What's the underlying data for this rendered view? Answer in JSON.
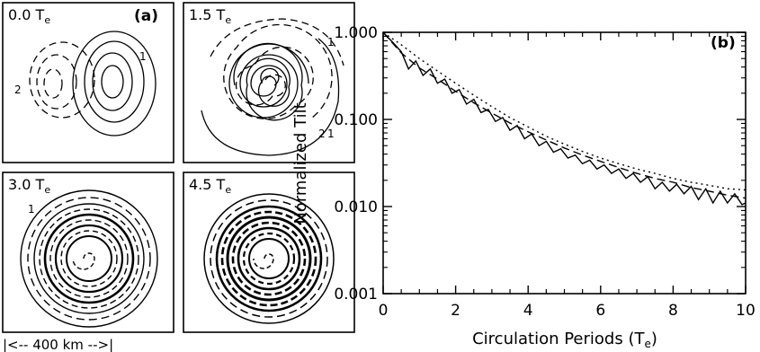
{
  "panel_a": {
    "label": "(a)",
    "panels": [
      {
        "time": "0.0",
        "unit": "T",
        "sub": "e",
        "contour_labels": [
          "2",
          "1"
        ]
      },
      {
        "time": "1.5",
        "unit": "T",
        "sub": "e",
        "contour_labels": [
          "1",
          "2",
          "1"
        ]
      },
      {
        "time": "3.0",
        "unit": "T",
        "sub": "e",
        "contour_labels": [
          "1"
        ]
      },
      {
        "time": "4.5",
        "unit": "T",
        "sub": "e",
        "contour_labels": []
      }
    ],
    "scale_bar": "|<-- 400 km -->|"
  },
  "chart_data": {
    "type": "line",
    "panel_label": "(b)",
    "xlabel": "Circulation Periods (T",
    "xlabel_sub": "e",
    "xlabel_end": ")",
    "ylabel": "Normalized Tilt",
    "xlim": [
      0,
      10
    ],
    "ylim": [
      0.001,
      1.0
    ],
    "y_scale": "log",
    "x_ticks": [
      "0",
      "2",
      "4",
      "6",
      "8",
      "10"
    ],
    "y_ticks": [
      "0.001",
      "0.010",
      "0.100",
      "1.000"
    ],
    "series": [
      {
        "style": "solid",
        "x": [
          0.0,
          0.25,
          0.5,
          0.7,
          0.9,
          1.1,
          1.3,
          1.5,
          1.7,
          1.9,
          2.1,
          2.3,
          2.5,
          2.7,
          2.9,
          3.1,
          3.3,
          3.5,
          3.7,
          3.9,
          4.1,
          4.3,
          4.5,
          4.7,
          4.9,
          5.1,
          5.3,
          5.5,
          5.7,
          5.9,
          6.1,
          6.3,
          6.5,
          6.7,
          6.9,
          7.1,
          7.3,
          7.5,
          7.7,
          7.9,
          8.1,
          8.3,
          8.5,
          8.7,
          8.9,
          9.1,
          9.3,
          9.5,
          9.7,
          9.9,
          10.0
        ],
        "y": [
          1.0,
          0.78,
          0.6,
          0.38,
          0.47,
          0.32,
          0.38,
          0.26,
          0.29,
          0.2,
          0.22,
          0.15,
          0.17,
          0.12,
          0.13,
          0.095,
          0.105,
          0.075,
          0.085,
          0.06,
          0.068,
          0.05,
          0.056,
          0.042,
          0.046,
          0.036,
          0.039,
          0.031,
          0.034,
          0.027,
          0.03,
          0.024,
          0.027,
          0.021,
          0.024,
          0.019,
          0.022,
          0.016,
          0.019,
          0.015,
          0.018,
          0.014,
          0.017,
          0.012,
          0.016,
          0.011,
          0.015,
          0.011,
          0.014,
          0.0105,
          0.011
        ]
      },
      {
        "style": "dashed",
        "x": [
          0.0,
          0.5,
          1.0,
          1.5,
          2.0,
          2.5,
          3.0,
          3.5,
          4.0,
          4.5,
          5.0,
          5.5,
          6.0,
          6.5,
          7.0,
          7.5,
          8.0,
          8.5,
          9.0,
          9.5,
          10.0
        ],
        "y": [
          1.0,
          0.58,
          0.39,
          0.29,
          0.21,
          0.155,
          0.118,
          0.091,
          0.072,
          0.058,
          0.047,
          0.039,
          0.033,
          0.028,
          0.024,
          0.021,
          0.019,
          0.0165,
          0.015,
          0.0135,
          0.0125
        ]
      },
      {
        "style": "dotted",
        "x": [
          0.0,
          0.5,
          1.0,
          1.5,
          2.0,
          2.5,
          3.0,
          3.5,
          4.0,
          4.5,
          5.0,
          5.5,
          6.0,
          6.5,
          7.0,
          7.5,
          8.0,
          8.5,
          9.0,
          9.5,
          10.0
        ],
        "y": [
          1.0,
          0.72,
          0.5,
          0.36,
          0.26,
          0.19,
          0.14,
          0.105,
          0.082,
          0.064,
          0.052,
          0.043,
          0.036,
          0.031,
          0.027,
          0.024,
          0.021,
          0.019,
          0.0175,
          0.016,
          0.0155
        ]
      }
    ]
  }
}
